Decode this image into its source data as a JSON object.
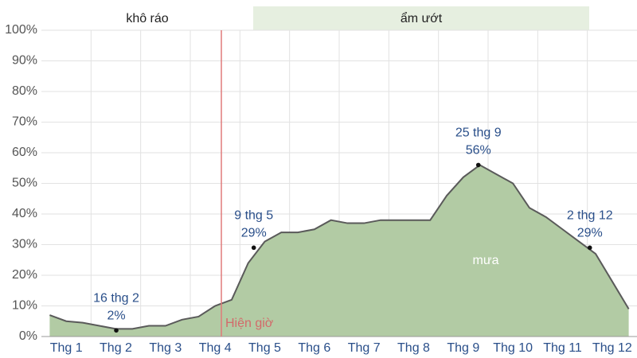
{
  "chart_data": {
    "type": "area",
    "seasons": [
      "khô ráo",
      "ẩm ướt"
    ],
    "now_label": "Hiện giờ",
    "categories": [
      null,
      "Thg 1",
      null,
      null,
      "Thg 2",
      null,
      null,
      "Thg 3",
      null,
      null,
      "Thg 4",
      null,
      null,
      "Thg 5",
      null,
      null,
      "Thg 6",
      null,
      null,
      "Thg 7",
      null,
      null,
      "Thg 8",
      null,
      null,
      "Thg 9",
      null,
      null,
      "Thg 10",
      null,
      null,
      "Thg 11",
      null,
      null,
      "Thg 12",
      null
    ],
    "series": [
      {
        "name": "mưa",
        "color": "#b2cba4",
        "line_color": "#5a5a5a",
        "values": [
          7,
          5,
          4.5,
          3.5,
          2.5,
          2.5,
          3.5,
          3.5,
          5.5,
          6.5,
          10,
          12,
          24,
          31,
          34,
          34,
          35,
          38,
          37,
          37,
          38,
          38,
          38,
          38,
          46,
          52,
          56,
          53,
          50,
          42,
          39,
          35,
          31,
          27,
          18,
          9
        ]
      }
    ],
    "ylim": [
      0,
      100
    ],
    "yticks": [
      {
        "value": 0,
        "label": "0%"
      },
      {
        "value": 10,
        "label": "10%"
      },
      {
        "value": 20,
        "label": "20%"
      },
      {
        "value": 30,
        "label": "30%"
      },
      {
        "value": 40,
        "label": "40%"
      },
      {
        "value": 50,
        "label": "50%"
      },
      {
        "value": 60,
        "label": "60%"
      },
      {
        "value": 70,
        "label": "70%"
      },
      {
        "value": 80,
        "label": "80%"
      },
      {
        "value": 90,
        "label": "90%"
      },
      {
        "value": 100,
        "label": "100%"
      }
    ],
    "grid": true,
    "annotations": [
      {
        "date": "16 thg 2",
        "value": 2,
        "value_label": "2%"
      },
      {
        "date": "9 thg 5",
        "value": 29,
        "value_label": "29%"
      },
      {
        "date": "25 thg 9",
        "value": 56,
        "value_label": "56%"
      },
      {
        "date": "2 thg 12",
        "value": 29,
        "value_label": "29%"
      }
    ]
  }
}
